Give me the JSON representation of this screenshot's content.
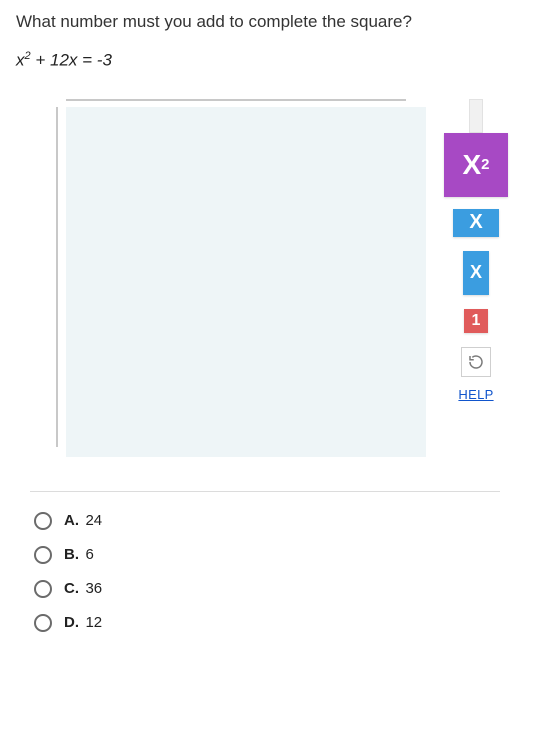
{
  "question": {
    "prompt": "What number must you add to complete the square?",
    "equation_html": "<span class='var'>x</span><sup>2</sup> + 12<span class='var'>x</span> = -3"
  },
  "workspace": {
    "canvas_bg": "#eef5f7",
    "axis_color": "#c8c8c8"
  },
  "tools": {
    "x2": {
      "label_html": "X<sup>2</sup>",
      "bg": "#a749c4"
    },
    "x_big": {
      "label": "X",
      "bg": "#3b9de0"
    },
    "x_small": {
      "label": "X",
      "bg": "#3b9de0"
    },
    "one": {
      "label": "1",
      "bg": "#e05b5b"
    },
    "refresh_icon_color": "#7a7a7a",
    "help_label": "HELP"
  },
  "answers": [
    {
      "letter": "A.",
      "value": "24"
    },
    {
      "letter": "B.",
      "value": "6"
    },
    {
      "letter": "C.",
      "value": "36"
    },
    {
      "letter": "D.",
      "value": "12"
    }
  ]
}
